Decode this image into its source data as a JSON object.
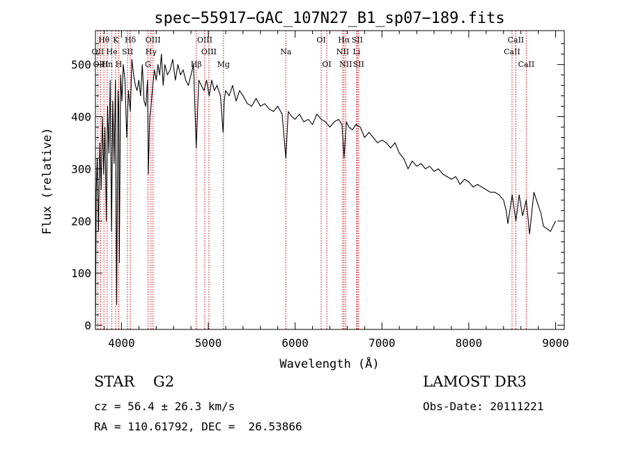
{
  "chart_data": {
    "type": "line",
    "title": "spec−55917−GAC_107N27_B1_sp07−189.fits",
    "xlabel": "Wavelength (Å)",
    "ylabel": "Flux (relative)",
    "xlim": [
      3700,
      9100
    ],
    "ylim": [
      -8,
      565
    ],
    "xticks": [
      4000,
      5000,
      6000,
      7000,
      8000,
      9000
    ],
    "yticks": [
      0,
      100,
      200,
      300,
      400,
      500
    ],
    "series": [
      {
        "name": "flux",
        "x": [
          3700,
          3710,
          3720,
          3735,
          3750,
          3765,
          3780,
          3795,
          3810,
          3825,
          3840,
          3855,
          3870,
          3885,
          3900,
          3915,
          3930,
          3945,
          3960,
          3968,
          3975,
          3990,
          4005,
          4020,
          4040,
          4060,
          4080,
          4102,
          4120,
          4140,
          4160,
          4180,
          4200,
          4220,
          4240,
          4260,
          4280,
          4300,
          4310,
          4325,
          4340,
          4360,
          4380,
          4400,
          4420,
          4440,
          4460,
          4480,
          4500,
          4530,
          4560,
          4590,
          4620,
          4650,
          4680,
          4710,
          4740,
          4770,
          4800,
          4830,
          4861,
          4890,
          4920,
          4950,
          4980,
          5010,
          5040,
          5070,
          5100,
          5140,
          5170,
          5183,
          5200,
          5240,
          5280,
          5320,
          5360,
          5400,
          5450,
          5500,
          5550,
          5600,
          5650,
          5700,
          5750,
          5800,
          5850,
          5893,
          5920,
          5960,
          6000,
          6050,
          6100,
          6150,
          6200,
          6250,
          6300,
          6350,
          6400,
          6450,
          6500,
          6540,
          6563,
          6590,
          6620,
          6660,
          6700,
          6750,
          6800,
          6850,
          6900,
          6950,
          7000,
          7050,
          7100,
          7150,
          7200,
          7250,
          7300,
          7350,
          7400,
          7450,
          7500,
          7550,
          7600,
          7650,
          7700,
          7750,
          7800,
          7850,
          7900,
          7950,
          8000,
          8050,
          8100,
          8150,
          8200,
          8250,
          8300,
          8350,
          8400,
          8430,
          8450,
          8500,
          8542,
          8580,
          8620,
          8662,
          8700,
          8750,
          8800,
          8830,
          8860,
          8900,
          8940,
          8970,
          9000
        ],
        "values": [
          0,
          260,
          320,
          180,
          350,
          260,
          400,
          290,
          380,
          200,
          420,
          330,
          470,
          180,
          430,
          310,
          470,
          40,
          450,
          420,
          120,
          480,
          430,
          500,
          470,
          360,
          450,
          410,
          510,
          480,
          460,
          450,
          470,
          440,
          500,
          430,
          420,
          470,
          290,
          400,
          420,
          460,
          490,
          470,
          500,
          480,
          520,
          460,
          500,
          480,
          490,
          510,
          470,
          500,
          480,
          490,
          470,
          460,
          480,
          500,
          340,
          470,
          460,
          450,
          470,
          440,
          470,
          450,
          460,
          440,
          370,
          430,
          450,
          440,
          460,
          430,
          450,
          440,
          425,
          420,
          435,
          420,
          425,
          415,
          410,
          420,
          405,
          320,
          410,
          400,
          395,
          405,
          390,
          395,
          385,
          405,
          395,
          390,
          380,
          390,
          395,
          385,
          320,
          390,
          380,
          375,
          385,
          380,
          360,
          370,
          360,
          350,
          355,
          350,
          340,
          350,
          330,
          320,
          300,
          315,
          305,
          310,
          300,
          305,
          295,
          300,
          290,
          285,
          280,
          285,
          270,
          280,
          275,
          265,
          270,
          265,
          260,
          255,
          255,
          250,
          240,
          220,
          195,
          250,
          200,
          250,
          210,
          240,
          175,
          255,
          230,
          215,
          190,
          185,
          180,
          190,
          200
        ]
      }
    ],
    "lines": [
      {
        "label": "Hθ",
        "x": 3798,
        "row": 0
      },
      {
        "label": "OII",
        "x": 3727,
        "row": 1
      },
      {
        "label": "OIII",
        "x": 3760,
        "row": 2
      },
      {
        "label": "K",
        "x": 3934,
        "row": 0
      },
      {
        "label": "He",
        "x": 3889,
        "row": 1
      },
      {
        "label": "Hn",
        "x": 3835,
        "row": 2
      },
      {
        "label": "H",
        "x": 3969,
        "row": 2
      },
      {
        "label": "Hδ",
        "x": 4102,
        "row": 0
      },
      {
        "label": "SII",
        "x": 4070,
        "row": 1
      },
      {
        "label": "OIII",
        "x": 4363,
        "row": 0
      },
      {
        "label": "Hγ",
        "x": 4340,
        "row": 1
      },
      {
        "label": "G",
        "x": 4305,
        "row": 2
      },
      {
        "label": "OIII",
        "x": 4959,
        "row": 0
      },
      {
        "label": "OIII",
        "x": 5007,
        "row": 1
      },
      {
        "label": "Hβ",
        "x": 4861,
        "row": 2
      },
      {
        "label": "Mg",
        "x": 5175,
        "row": 2
      },
      {
        "label": "Na",
        "x": 5893,
        "row": 1
      },
      {
        "label": "OI",
        "x": 6300,
        "row": 0
      },
      {
        "label": "OI",
        "x": 6364,
        "row": 2
      },
      {
        "label": "Hα",
        "x": 6563,
        "row": 0
      },
      {
        "label": "NII",
        "x": 6548,
        "row": 1
      },
      {
        "label": "NII",
        "x": 6583,
        "row": 2
      },
      {
        "label": "SII",
        "x": 6716,
        "row": 0
      },
      {
        "label": "Li",
        "x": 6708,
        "row": 1
      },
      {
        "label": "SII",
        "x": 6731,
        "row": 2
      },
      {
        "label": "CaII",
        "x": 8542,
        "row": 0
      },
      {
        "label": "CaII",
        "x": 8498,
        "row": 1
      },
      {
        "label": "CaII",
        "x": 8662,
        "row": 2
      }
    ],
    "colors": {
      "flux": "#000000",
      "lines": "#cc0000",
      "axes": "#000000"
    }
  },
  "info": {
    "object_class": "STAR    G2",
    "survey": "LAMOST DR3",
    "cz": "cz = 56.4 ± 26.3 km/s",
    "obs_date": "Obs-Date: 20111221",
    "radec": "RA = 110.61792, DEC =  26.53866"
  }
}
